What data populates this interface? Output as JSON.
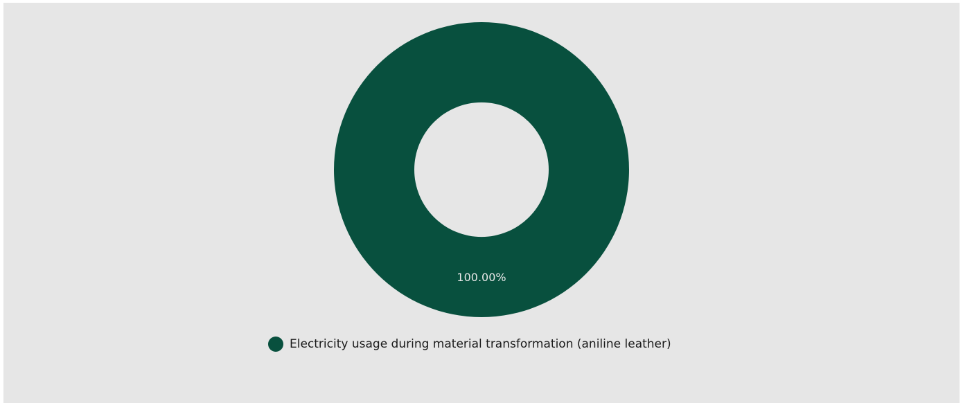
{
  "chart_data": {
    "type": "pie",
    "variant": "donut",
    "title": "",
    "slices": [
      {
        "label": "Electricity usage during material transformation (aniline leather)",
        "value": 100.0,
        "display_label": "100.00%",
        "color": "#08503e"
      }
    ],
    "legend_position": "bottom"
  },
  "colors": {
    "background": "#e6e6e6",
    "label_text": "#e8e8e8"
  }
}
